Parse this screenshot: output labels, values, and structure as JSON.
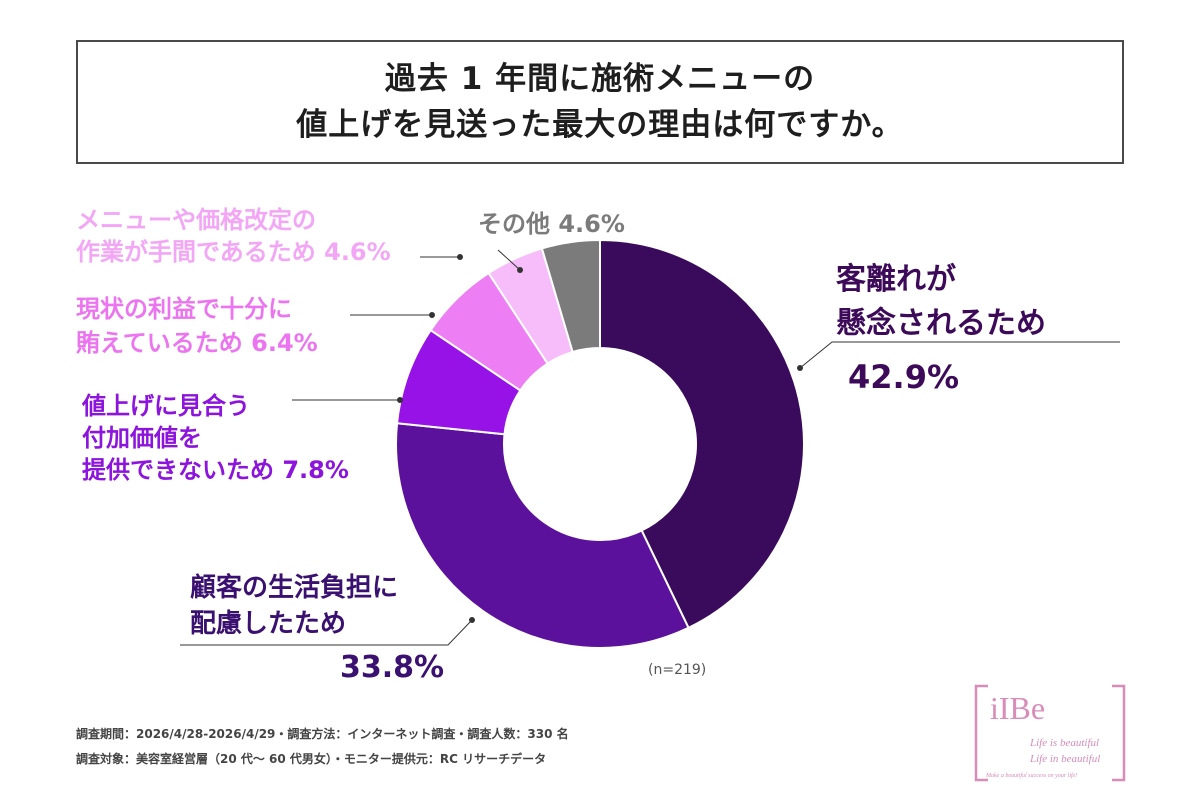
{
  "title": {
    "line1": "過去 1 年間に施術メニューの",
    "line2": "値上げを見送った最大の理由は何ですか。"
  },
  "chart_data": {
    "type": "donut",
    "start_angle_deg": 0,
    "direction": "clockwise",
    "slices": [
      {
        "label": "客離れが懸念されるため",
        "value": 42.9,
        "color": "#3a0a5c"
      },
      {
        "label": "顧客の生活負担に配慮したため",
        "value": 33.8,
        "color": "#5b119c"
      },
      {
        "label": "値上げに見合う付加価値を提供できないため",
        "value": 7.8,
        "color": "#9612e6"
      },
      {
        "label": "現状の利益で十分に賄えているため",
        "value": 6.4,
        "color": "#ee7ef3"
      },
      {
        "label": "メニューや価格改定の作業が手間であるため",
        "value": 4.6,
        "color": "#f7bdfa"
      },
      {
        "label": "その他",
        "value": 4.6,
        "color": "#7b7b7b"
      }
    ],
    "sample_size": "(n=219)"
  },
  "labels": {
    "other": "その他 4.6%",
    "menu_line1": "メニューや価格改定の",
    "menu_line2": "作業が手間であるため 4.6%",
    "profit_line1": "現状の利益で十分に",
    "profit_line2": "賄えているため 6.4%",
    "value_line1": "値上げに見合う",
    "value_line2": "付加価値を",
    "value_line3": "提供できないため 7.8%",
    "churn_line1": "客離れが",
    "churn_line2": "懸念されるため",
    "churn_pct": "42.9%",
    "burden_line1": "顧客の生活負担に",
    "burden_line2": "配慮したため",
    "burden_pct": "33.8%"
  },
  "footer": {
    "line1": "調査期間：2026/4/28-2026/4/29・調査方法：インターネット調査・調査人数：330 名",
    "line2": "調査対象：美容室経営層（20 代～ 60 代男女）・モニター提供元：RC リサーチデータ"
  },
  "logo": {
    "name": "iIBe",
    "tagline1": "Life is beautiful",
    "tagline2": "Life in beautiful",
    "tagline3": "Make a beautiful success on your life!"
  }
}
